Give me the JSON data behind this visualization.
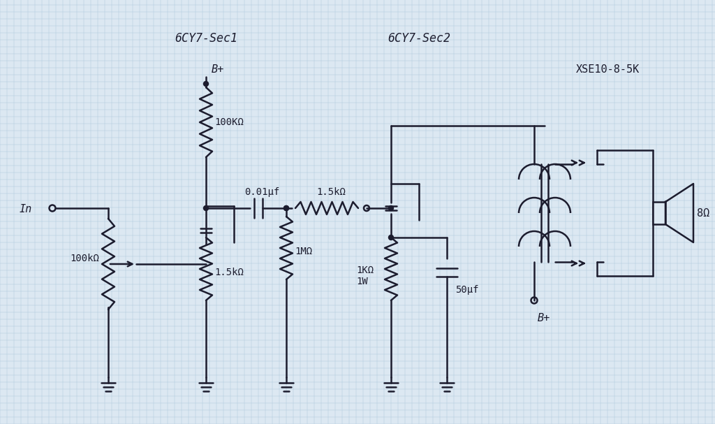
{
  "bg_color": "#dce8f2",
  "line_color": "#1c1c2e",
  "grid_color": "#b0c8dc",
  "title_sec1": "6CY7-Sec1",
  "title_sec2": "6CY7-Sec2",
  "title_xse": "XSE10-8-5K",
  "label_in": "In",
  "label_bplus1": "B+",
  "label_bplus2": "B+",
  "label_100k_pot": "100kΩ",
  "label_100K": "100KΩ",
  "label_1p5k_cath": "1.5kΩ",
  "label_001uf": "0.01μf",
  "label_1p5k_grid": "1.5kΩ",
  "label_1M": "1MΩ",
  "label_1k1w": "1KΩ\n1W",
  "label_50uf": "50μf",
  "label_8ohm": "8Ω"
}
